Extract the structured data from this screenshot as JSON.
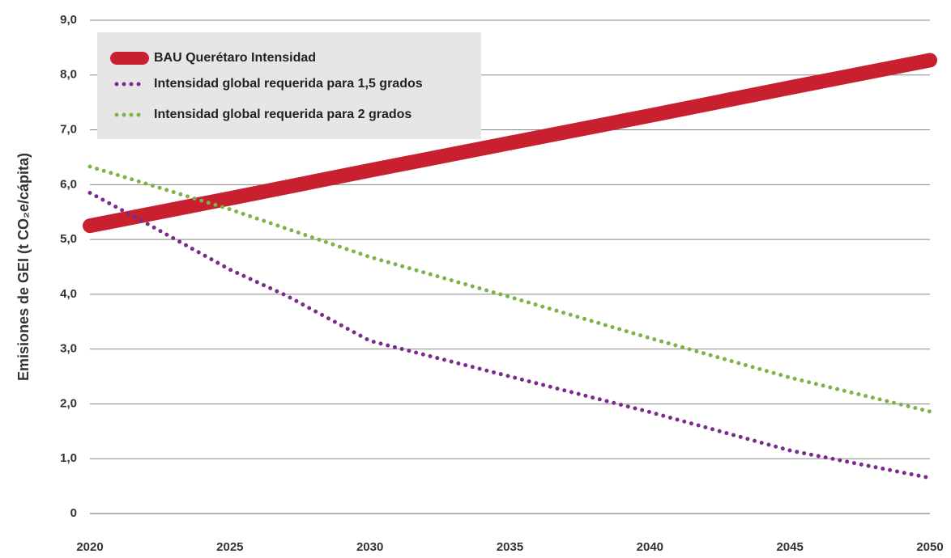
{
  "chart_data": {
    "type": "line",
    "ylabel": "Emisiones de GEI (t CO₂e/cápita)",
    "xlim": [
      2020,
      2050
    ],
    "xticks": [
      2020,
      2025,
      2030,
      2035,
      2040,
      2045,
      2050
    ],
    "ylim": [
      0,
      9
    ],
    "yticks": [
      0,
      {
        "value": 1,
        "label": "1,0"
      },
      {
        "value": 2,
        "label": "2,0"
      },
      {
        "value": 3,
        "label": "3,0"
      },
      {
        "value": 4,
        "label": "4,0"
      },
      {
        "value": 5,
        "label": "5,0"
      },
      {
        "value": 6,
        "label": "6,0"
      },
      {
        "value": 7,
        "label": "7,0"
      },
      {
        "value": 8,
        "label": "8,0"
      },
      {
        "value": 9,
        "label": "9,0"
      }
    ],
    "grid": true,
    "legend": "upper left",
    "series": [
      {
        "name": "BAU Querétaro Intensidad",
        "color": "#c8202f",
        "style": "solid",
        "x": [
          2020,
          2025,
          2030,
          2035,
          2040,
          2045,
          2050
        ],
        "values": [
          5.25,
          5.75,
          6.26,
          6.76,
          7.26,
          7.77,
          8.27
        ]
      },
      {
        "name": "Intensidad global requerida para 1,5 grados",
        "color": "#7b2a8e",
        "style": "dotted",
        "x": [
          2020,
          2022,
          2025,
          2027,
          2030,
          2035,
          2040,
          2045,
          2050
        ],
        "values": [
          5.85,
          5.3,
          4.45,
          3.98,
          3.15,
          2.5,
          1.85,
          1.15,
          0.65
        ]
      },
      {
        "name": "Intensidad global requerida para 2 grados",
        "color": "#7bb347",
        "style": "dotted",
        "x": [
          2020,
          2025,
          2030,
          2035,
          2040,
          2045,
          2050
        ],
        "values": [
          6.33,
          5.55,
          4.68,
          3.95,
          3.2,
          2.48,
          1.86
        ]
      }
    ]
  }
}
